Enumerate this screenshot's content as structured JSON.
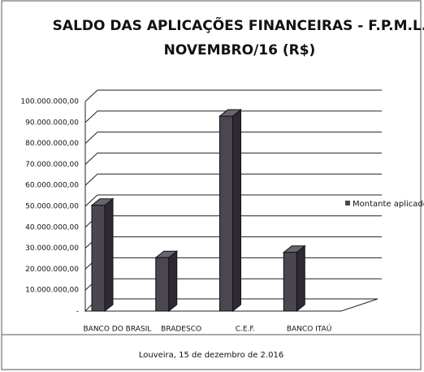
{
  "chart_data": {
    "type": "bar",
    "title": "SALDO DAS APLICAÇÕES FINANCEIRAS - F.P.M.L.",
    "subtitle": "NOVEMBRO/16 (R$)",
    "categories": [
      "BANCO DO BRASIL",
      "BRADESCO",
      "C.E.F.",
      "BANCO ITAÚ"
    ],
    "series": [
      {
        "name": "Montante aplicado",
        "color": "#4b4652",
        "values": [
          50500000,
          25500000,
          93000000,
          28000000
        ]
      }
    ],
    "ylim": [
      0,
      100000000
    ],
    "yticks": [
      {
        "value": 0,
        "label": "-"
      },
      {
        "value": 10000000,
        "label": "10.000.000,00"
      },
      {
        "value": 20000000,
        "label": "20.000.000,00"
      },
      {
        "value": 30000000,
        "label": "30.000.000,00"
      },
      {
        "value": 40000000,
        "label": "40.000.000,00"
      },
      {
        "value": 50000000,
        "label": "50.000.000,00"
      },
      {
        "value": 60000000,
        "label": "60.000.000,00"
      },
      {
        "value": 70000000,
        "label": "70.000.000,00"
      },
      {
        "value": 80000000,
        "label": "80.000.000,00"
      },
      {
        "value": 90000000,
        "label": "90.000.000,00"
      },
      {
        "value": 100000000,
        "label": "100.000.000,00"
      }
    ],
    "grid": true,
    "legend": "right"
  },
  "footer": "Louveira, 15 de dezembro de 2.016"
}
